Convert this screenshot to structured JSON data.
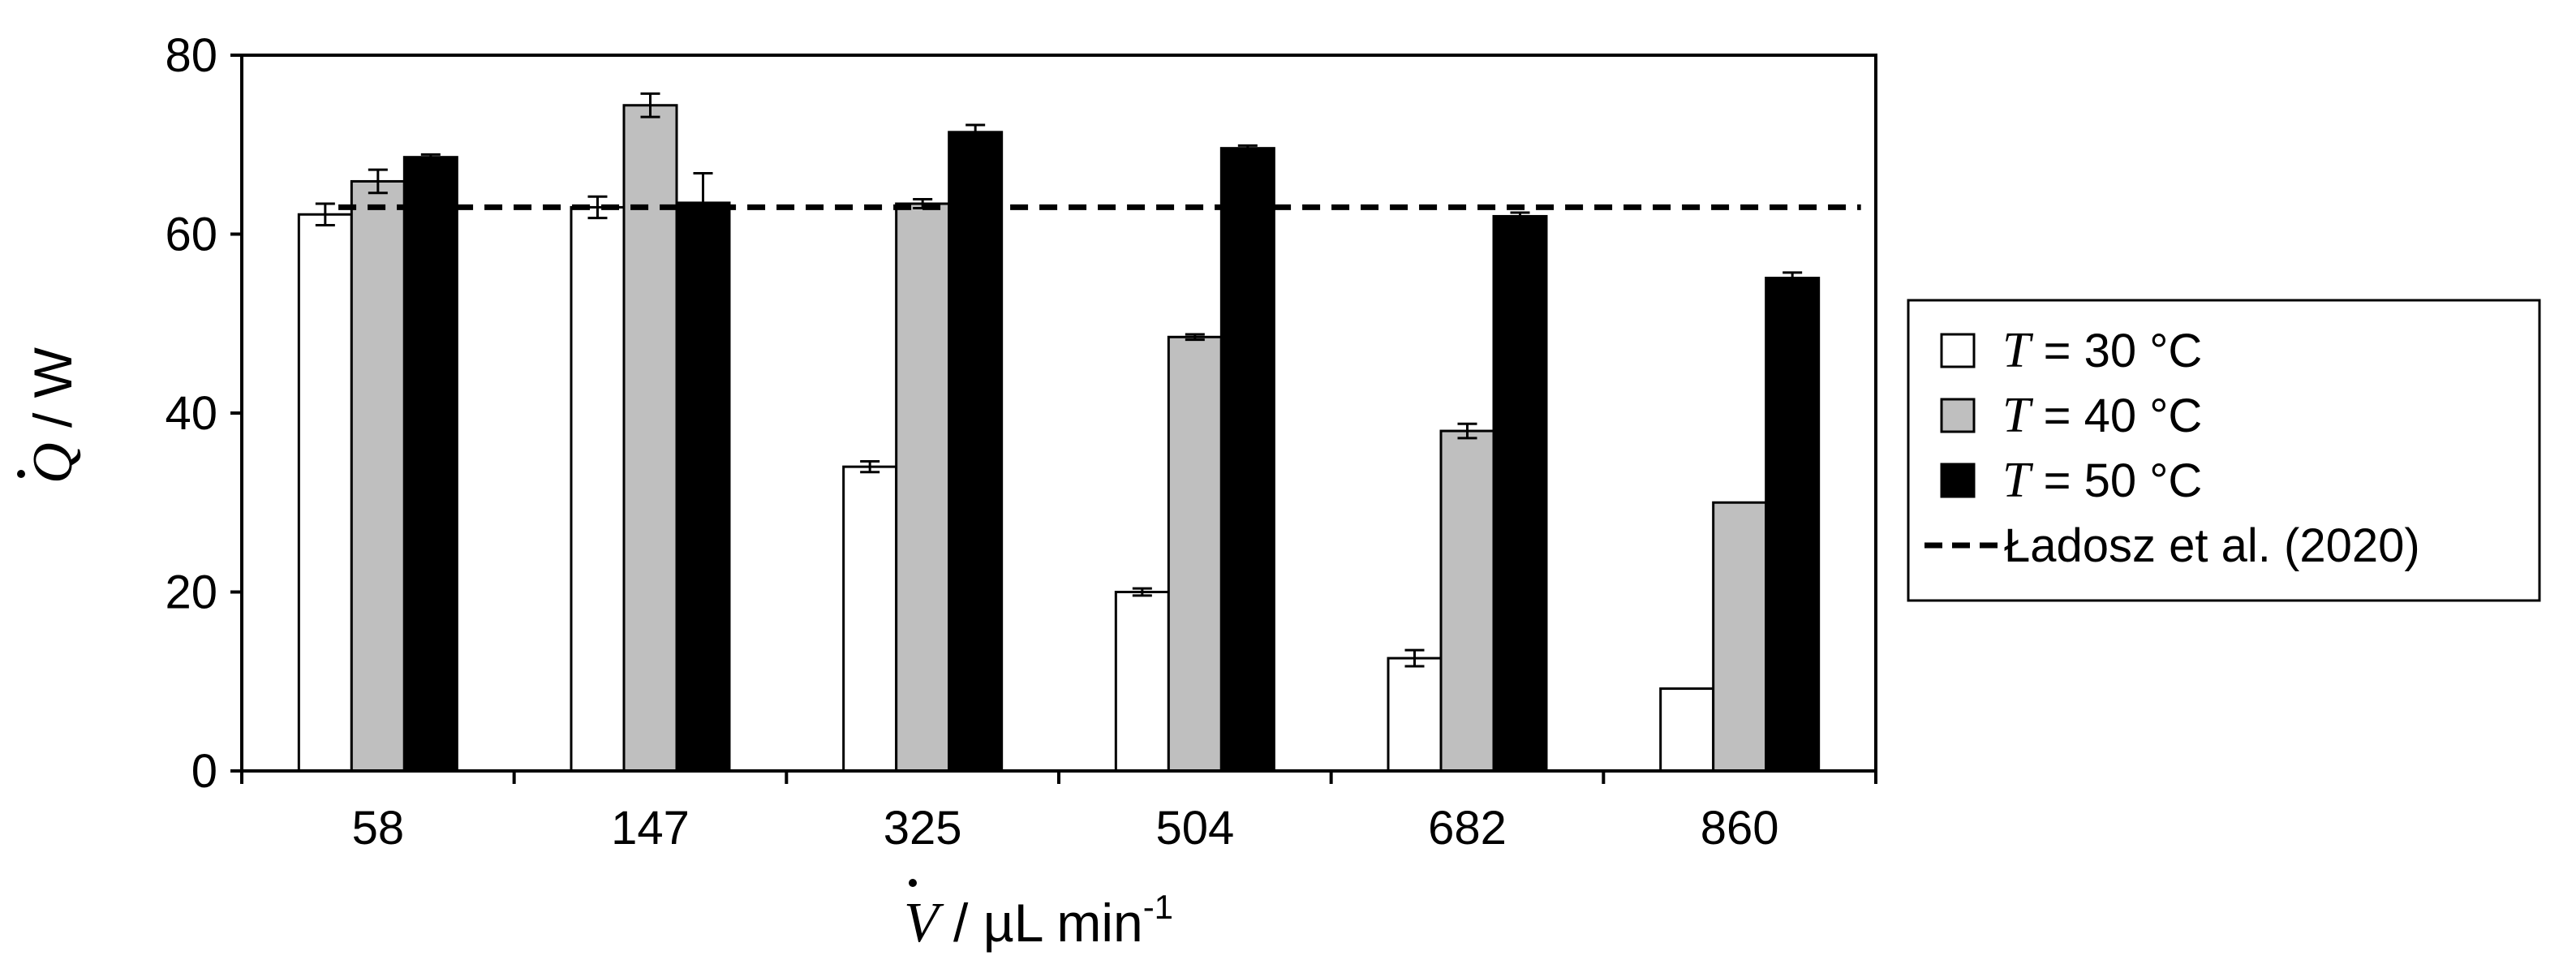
{
  "chart_data": {
    "type": "bar",
    "categories": [
      "58",
      "147",
      "325",
      "504",
      "682",
      "860"
    ],
    "series": [
      {
        "name": "T = 30 °C",
        "label_var": "T",
        "label_rest": " = 30 °C",
        "color": "#ffffff",
        "values": [
          62.2,
          63.0,
          34.0,
          20.0,
          12.6,
          9.2
        ],
        "errors": [
          1.2,
          1.2,
          0.6,
          0.4,
          0.9,
          0.0
        ]
      },
      {
        "name": "T = 40 °C",
        "label_var": "T",
        "label_rest": " = 40 °C",
        "color": "#bfbfbf",
        "values": [
          65.9,
          74.4,
          63.4,
          48.5,
          38.0,
          30.0
        ],
        "errors": [
          1.3,
          1.3,
          0.5,
          0.3,
          0.8,
          0.0
        ]
      },
      {
        "name": "T = 50 °C",
        "label_var": "T",
        "label_rest": " = 50 °C",
        "color": "#000000",
        "values": [
          68.6,
          63.5,
          71.4,
          69.6,
          62.0,
          55.1
        ],
        "errors": [
          0.3,
          3.3,
          0.8,
          0.3,
          0.4,
          0.6
        ]
      }
    ],
    "reference_line": {
      "name": "Ładosz et al. (2020)",
      "value": 63.0,
      "style": "dashed"
    },
    "ylim": [
      0,
      80
    ],
    "yticks": [
      "0",
      "20",
      "40",
      "60",
      "80"
    ],
    "ylabel": {
      "var": "Q",
      "rest": " / W"
    },
    "xlabel": {
      "var": "V",
      "rest": " / µL min",
      "sup": "-1"
    },
    "grid": false,
    "legend_position": "right"
  }
}
